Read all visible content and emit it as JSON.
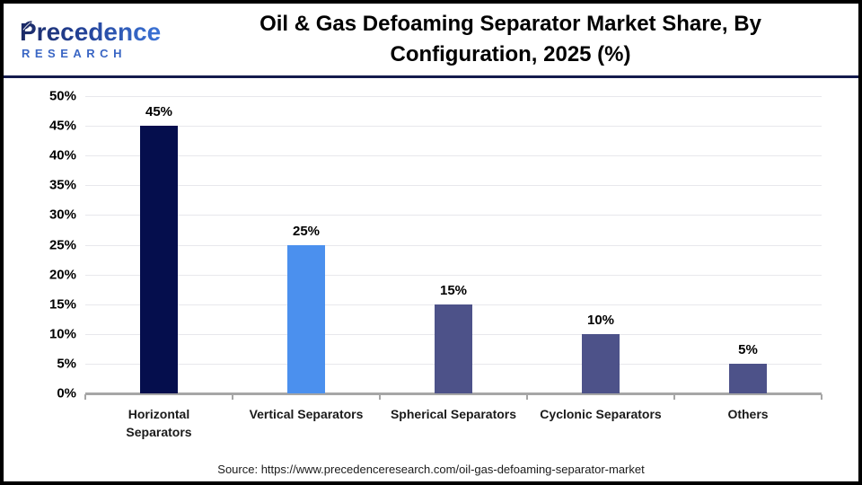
{
  "header": {
    "logo_line1": "Precedence",
    "logo_line2": "RESEARCH",
    "title_line1": "Oil & Gas Defoaming Separator Market Share, By",
    "title_line2": "Configuration, 2025 (%)"
  },
  "chart_data": {
    "type": "bar",
    "title": "Oil & Gas Defoaming Separator Market Share, By Configuration, 2025 (%)",
    "categories": [
      "Horizontal Separators",
      "Vertical Separators",
      "Spherical Separators",
      "Cyclonic Separators",
      "Others"
    ],
    "values": [
      45,
      25,
      15,
      10,
      5
    ],
    "value_labels": [
      "45%",
      "25%",
      "15%",
      "10%",
      "5%"
    ],
    "bar_colors": [
      "#050e4d",
      "#4b90ee",
      "#4d5289",
      "#4d5289",
      "#4d5289"
    ],
    "xlabel": "",
    "ylabel": "",
    "ylim": [
      0,
      50
    ],
    "yticks": [
      0,
      5,
      10,
      15,
      20,
      25,
      30,
      35,
      40,
      45,
      50
    ],
    "ytick_labels": [
      "0%",
      "5%",
      "10%",
      "15%",
      "20%",
      "25%",
      "30%",
      "35%",
      "40%",
      "45%",
      "50%"
    ],
    "grid": true,
    "legend": "none"
  },
  "footer": {
    "source": "Source: https://www.precedenceresearch.com/oil-gas-defoaming-separator-market"
  },
  "colors": {
    "navy_bar": "#050e4d",
    "blue_bar": "#4b90ee",
    "slate_bar": "#4d5289",
    "divider": "#141b4d",
    "gridline": "#e8e8ec",
    "axis_line": "#a6a6a6",
    "logo_dark": "#1b2a66",
    "logo_blue": "#4a90ee"
  }
}
